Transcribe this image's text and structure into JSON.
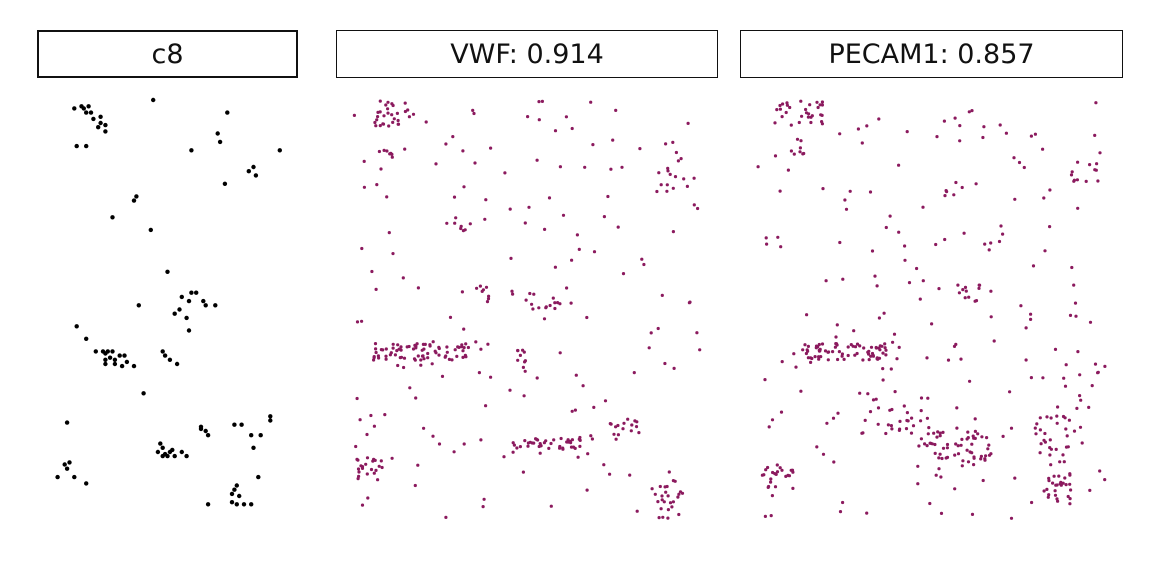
{
  "chart_data": [
    {
      "type": "scatter",
      "title": "c8",
      "color": "#000000",
      "xlim": [
        0,
        1
      ],
      "ylim": [
        0,
        1
      ],
      "grid": false,
      "points": [
        [
          0.11,
          0.02
        ],
        [
          0.14,
          0.015
        ],
        [
          0.15,
          0.02
        ],
        [
          0.16,
          0.03
        ],
        [
          0.17,
          0.015
        ],
        [
          0.18,
          0.03
        ],
        [
          0.19,
          0.045
        ],
        [
          0.22,
          0.04
        ],
        [
          0.22,
          0.055
        ],
        [
          0.24,
          0.06
        ],
        [
          0.21,
          0.065
        ],
        [
          0.24,
          0.075
        ],
        [
          0.12,
          0.11
        ],
        [
          0.16,
          0.11
        ],
        [
          0.44,
          0.0
        ],
        [
          0.75,
          0.03
        ],
        [
          0.71,
          0.08
        ],
        [
          0.72,
          0.1
        ],
        [
          0.6,
          0.12
        ],
        [
          0.97,
          0.12
        ],
        [
          0.84,
          0.17
        ],
        [
          0.86,
          0.16
        ],
        [
          0.87,
          0.18
        ],
        [
          0.74,
          0.2
        ],
        [
          0.36,
          0.24
        ],
        [
          0.37,
          0.23
        ],
        [
          0.27,
          0.28
        ],
        [
          0.43,
          0.31
        ],
        [
          0.5,
          0.41
        ],
        [
          0.56,
          0.47
        ],
        [
          0.6,
          0.46
        ],
        [
          0.62,
          0.46
        ],
        [
          0.59,
          0.48
        ],
        [
          0.65,
          0.48
        ],
        [
          0.66,
          0.49
        ],
        [
          0.7,
          0.49
        ],
        [
          0.38,
          0.49
        ],
        [
          0.55,
          0.5
        ],
        [
          0.53,
          0.51
        ],
        [
          0.58,
          0.52
        ],
        [
          0.12,
          0.54
        ],
        [
          0.59,
          0.55
        ],
        [
          0.16,
          0.57
        ],
        [
          0.2,
          0.6
        ],
        [
          0.23,
          0.6
        ],
        [
          0.24,
          0.605
        ],
        [
          0.25,
          0.6
        ],
        [
          0.27,
          0.6
        ],
        [
          0.24,
          0.62
        ],
        [
          0.26,
          0.615
        ],
        [
          0.28,
          0.62
        ],
        [
          0.3,
          0.61
        ],
        [
          0.24,
          0.63
        ],
        [
          0.28,
          0.63
        ],
        [
          0.32,
          0.61
        ],
        [
          0.33,
          0.625
        ],
        [
          0.31,
          0.635
        ],
        [
          0.36,
          0.635
        ],
        [
          0.48,
          0.6
        ],
        [
          0.49,
          0.61
        ],
        [
          0.51,
          0.62
        ],
        [
          0.54,
          0.63
        ],
        [
          0.4,
          0.7
        ],
        [
          0.08,
          0.77
        ],
        [
          0.78,
          0.775
        ],
        [
          0.81,
          0.775
        ],
        [
          0.93,
          0.755
        ],
        [
          0.93,
          0.765
        ],
        [
          0.64,
          0.785
        ],
        [
          0.66,
          0.79
        ],
        [
          0.67,
          0.8
        ],
        [
          0.64,
          0.78
        ],
        [
          0.85,
          0.8
        ],
        [
          0.89,
          0.8
        ],
        [
          0.47,
          0.82
        ],
        [
          0.48,
          0.83
        ],
        [
          0.46,
          0.84
        ],
        [
          0.49,
          0.845
        ],
        [
          0.51,
          0.84
        ],
        [
          0.52,
          0.835
        ],
        [
          0.48,
          0.85
        ],
        [
          0.5,
          0.85
        ],
        [
          0.53,
          0.85
        ],
        [
          0.56,
          0.84
        ],
        [
          0.58,
          0.85
        ],
        [
          0.86,
          0.83
        ],
        [
          0.07,
          0.87
        ],
        [
          0.09,
          0.865
        ],
        [
          0.08,
          0.88
        ],
        [
          0.04,
          0.9
        ],
        [
          0.11,
          0.9
        ],
        [
          0.16,
          0.915
        ],
        [
          0.88,
          0.9
        ],
        [
          0.78,
          0.93
        ],
        [
          0.79,
          0.92
        ],
        [
          0.77,
          0.94
        ],
        [
          0.8,
          0.945
        ],
        [
          0.77,
          0.96
        ],
        [
          0.79,
          0.965
        ],
        [
          0.82,
          0.965
        ],
        [
          0.85,
          0.965
        ],
        [
          0.67,
          0.965
        ]
      ]
    },
    {
      "type": "scatter",
      "title": "VWF: 0.914",
      "color": "#8b1a5e",
      "xlim": [
        0,
        1
      ],
      "ylim": [
        0,
        1
      ],
      "grid": false
    },
    {
      "type": "scatter",
      "title": "PECAM1: 0.857",
      "color": "#8b1a5e",
      "xlim": [
        0,
        1
      ],
      "ylim": [
        0,
        1
      ],
      "grid": false
    }
  ]
}
